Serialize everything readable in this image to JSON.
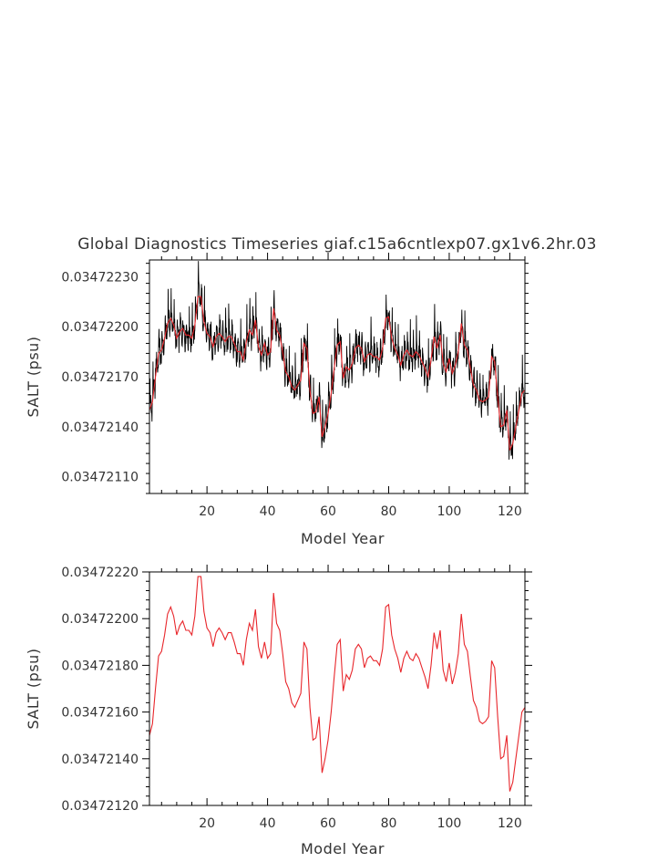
{
  "title": "Global Diagnostics Timeseries giaf.c15a6cntlexp07.gx1v6.2hr.03",
  "colors": {
    "raw": "#000000",
    "smoothed": "#e8262b",
    "axis": "#000000"
  },
  "chart_data": [
    {
      "type": "line",
      "title": "Global Diagnostics Timeseries giaf.c15a6cntlexp07.gx1v6.2hr.03",
      "xlabel": "Model Year",
      "ylabel": "SALT (psu)",
      "xlim": [
        1,
        125
      ],
      "ylim": [
        0.034721,
        0.0347224
      ],
      "xticks": [
        20,
        40,
        60,
        80,
        100,
        120
      ],
      "yticks": [
        0.0347211,
        0.0347214,
        0.0347217,
        0.034722,
        0.0347223
      ],
      "ytick_labels": [
        "0.03472110",
        "0.03472140",
        "0.03472170",
        "0.03472200",
        "0.03472230"
      ],
      "grid": false,
      "series": [
        {
          "role": "raw-monthly",
          "color": "#000000",
          "description": "monthly values oscillating around the annual mean",
          "x": [
            1,
            2,
            3,
            4,
            5,
            6,
            7,
            8,
            9,
            10,
            11,
            12,
            13,
            14,
            15,
            16,
            17,
            18,
            19,
            20,
            21,
            22,
            23,
            24,
            25,
            26,
            27,
            28,
            29,
            30,
            31,
            32,
            33,
            34,
            35,
            36,
            37,
            38,
            39,
            40,
            41,
            42,
            43,
            44,
            45,
            46,
            47,
            48,
            49,
            50,
            51,
            52,
            53,
            54,
            55,
            56,
            57,
            58,
            59,
            60,
            61,
            62,
            63,
            64,
            65,
            66,
            67,
            68,
            69,
            70,
            71,
            72,
            73,
            74,
            75,
            76,
            77,
            78,
            79,
            80,
            81,
            82,
            83,
            84,
            85,
            86,
            87,
            88,
            89,
            90,
            91,
            92,
            93,
            94,
            95,
            96,
            97,
            98,
            99,
            100,
            101,
            102,
            103,
            104,
            105,
            106,
            107,
            108,
            109,
            110,
            111,
            112,
            113,
            114,
            115,
            116,
            117,
            118,
            119,
            120,
            121,
            122,
            123,
            124,
            125
          ],
          "y": [
            0.0347215,
            0.03472155,
            0.0347217,
            0.03472184,
            0.03472186,
            0.03472193,
            0.03472202,
            0.03472205,
            0.03472201,
            0.03472193,
            0.03472197,
            0.03472199,
            0.03472195,
            0.03472195,
            0.03472193,
            0.03472201,
            0.03472218,
            0.03472218,
            0.03472203,
            0.03472196,
            0.03472194,
            0.03472188,
            0.03472194,
            0.03472196,
            0.03472194,
            0.03472191,
            0.03472194,
            0.03472194,
            0.0347219,
            0.03472185,
            0.03472185,
            0.0347218,
            0.03472191,
            0.03472198,
            0.03472195,
            0.03472204,
            0.03472188,
            0.03472183,
            0.0347219,
            0.03472183,
            0.03472185,
            0.03472211,
            0.03472198,
            0.03472195,
            0.03472185,
            0.03472173,
            0.0347217,
            0.03472164,
            0.03472162,
            0.03472165,
            0.03472168,
            0.0347219,
            0.03472187,
            0.03472162,
            0.03472148,
            0.03472149,
            0.03472158,
            0.03472134,
            0.0347214,
            0.03472148,
            0.0347216,
            0.03472175,
            0.03472189,
            0.03472191,
            0.03472169,
            0.03472176,
            0.03472174,
            0.03472178,
            0.03472187,
            0.03472189,
            0.03472187,
            0.03472179,
            0.03472183,
            0.03472184,
            0.03472182,
            0.03472182,
            0.0347218,
            0.03472187,
            0.03472205,
            0.03472206,
            0.03472193,
            0.03472187,
            0.03472183,
            0.03472177,
            0.03472183,
            0.03472186,
            0.03472183,
            0.03472182,
            0.03472185,
            0.03472183,
            0.03472179,
            0.03472175,
            0.0347217,
            0.0347218,
            0.03472194,
            0.03472187,
            0.03472195,
            0.03472178,
            0.03472173,
            0.03472181,
            0.03472172,
            0.03472177,
            0.03472185,
            0.03472202,
            0.03472189,
            0.03472186,
            0.03472175,
            0.03472165,
            0.03472162,
            0.03472156,
            0.03472155,
            0.03472156,
            0.03472158,
            0.03472182,
            0.03472179,
            0.03472158,
            0.0347214,
            0.03472141,
            0.0347215,
            0.03472126,
            0.0347213,
            0.0347214,
            0.0347215,
            0.0347216,
            0.03472162
          ],
          "amplitude": 2.2e-07,
          "samples_per_year": 12
        },
        {
          "role": "annual-mean",
          "color": "#e8262b",
          "x": [
            1,
            2,
            3,
            4,
            5,
            6,
            7,
            8,
            9,
            10,
            11,
            12,
            13,
            14,
            15,
            16,
            17,
            18,
            19,
            20,
            21,
            22,
            23,
            24,
            25,
            26,
            27,
            28,
            29,
            30,
            31,
            32,
            33,
            34,
            35,
            36,
            37,
            38,
            39,
            40,
            41,
            42,
            43,
            44,
            45,
            46,
            47,
            48,
            49,
            50,
            51,
            52,
            53,
            54,
            55,
            56,
            57,
            58,
            59,
            60,
            61,
            62,
            63,
            64,
            65,
            66,
            67,
            68,
            69,
            70,
            71,
            72,
            73,
            74,
            75,
            76,
            77,
            78,
            79,
            80,
            81,
            82,
            83,
            84,
            85,
            86,
            87,
            88,
            89,
            90,
            91,
            92,
            93,
            94,
            95,
            96,
            97,
            98,
            99,
            100,
            101,
            102,
            103,
            104,
            105,
            106,
            107,
            108,
            109,
            110,
            111,
            112,
            113,
            114,
            115,
            116,
            117,
            118,
            119,
            120,
            121,
            122,
            123,
            124,
            125
          ],
          "y": [
            0.0347215,
            0.03472155,
            0.0347217,
            0.03472184,
            0.03472186,
            0.03472193,
            0.03472202,
            0.03472205,
            0.03472201,
            0.03472193,
            0.03472197,
            0.03472199,
            0.03472195,
            0.03472195,
            0.03472193,
            0.03472201,
            0.03472218,
            0.03472218,
            0.03472203,
            0.03472196,
            0.03472194,
            0.03472188,
            0.03472194,
            0.03472196,
            0.03472194,
            0.03472191,
            0.03472194,
            0.03472194,
            0.0347219,
            0.03472185,
            0.03472185,
            0.0347218,
            0.03472191,
            0.03472198,
            0.03472195,
            0.03472204,
            0.03472188,
            0.03472183,
            0.0347219,
            0.03472183,
            0.03472185,
            0.03472211,
            0.03472198,
            0.03472195,
            0.03472185,
            0.03472173,
            0.0347217,
            0.03472164,
            0.03472162,
            0.03472165,
            0.03472168,
            0.0347219,
            0.03472187,
            0.03472162,
            0.03472148,
            0.03472149,
            0.03472158,
            0.03472134,
            0.0347214,
            0.03472148,
            0.0347216,
            0.03472175,
            0.03472189,
            0.03472191,
            0.03472169,
            0.03472176,
            0.03472174,
            0.03472178,
            0.03472187,
            0.03472189,
            0.03472187,
            0.03472179,
            0.03472183,
            0.03472184,
            0.03472182,
            0.03472182,
            0.0347218,
            0.03472187,
            0.03472205,
            0.03472206,
            0.03472193,
            0.03472187,
            0.03472183,
            0.03472177,
            0.03472183,
            0.03472186,
            0.03472183,
            0.03472182,
            0.03472185,
            0.03472183,
            0.03472179,
            0.03472175,
            0.0347217,
            0.0347218,
            0.03472194,
            0.03472187,
            0.03472195,
            0.03472178,
            0.03472173,
            0.03472181,
            0.03472172,
            0.03472177,
            0.03472185,
            0.03472202,
            0.03472189,
            0.03472186,
            0.03472175,
            0.03472165,
            0.03472162,
            0.03472156,
            0.03472155,
            0.03472156,
            0.03472158,
            0.03472182,
            0.03472179,
            0.03472158,
            0.0347214,
            0.03472141,
            0.0347215,
            0.03472126,
            0.0347213,
            0.0347214,
            0.0347215,
            0.0347216,
            0.03472162
          ]
        }
      ]
    },
    {
      "type": "line",
      "title": "",
      "xlabel": "Model Year",
      "ylabel": "SALT (psu)",
      "xlim": [
        1,
        125
      ],
      "ylim": [
        0.0347212,
        0.0347222
      ],
      "xticks": [
        20,
        40,
        60,
        80,
        100,
        120
      ],
      "yticks": [
        0.0347212,
        0.0347214,
        0.0347216,
        0.0347218,
        0.034722,
        0.0347222
      ],
      "ytick_labels": [
        "0.03472120",
        "0.03472140",
        "0.03472160",
        "0.03472180",
        "0.03472200",
        "0.03472220"
      ],
      "grid": false,
      "series": [
        {
          "role": "annual-mean",
          "color": "#e8262b",
          "x": [
            1,
            2,
            3,
            4,
            5,
            6,
            7,
            8,
            9,
            10,
            11,
            12,
            13,
            14,
            15,
            16,
            17,
            18,
            19,
            20,
            21,
            22,
            23,
            24,
            25,
            26,
            27,
            28,
            29,
            30,
            31,
            32,
            33,
            34,
            35,
            36,
            37,
            38,
            39,
            40,
            41,
            42,
            43,
            44,
            45,
            46,
            47,
            48,
            49,
            50,
            51,
            52,
            53,
            54,
            55,
            56,
            57,
            58,
            59,
            60,
            61,
            62,
            63,
            64,
            65,
            66,
            67,
            68,
            69,
            70,
            71,
            72,
            73,
            74,
            75,
            76,
            77,
            78,
            79,
            80,
            81,
            82,
            83,
            84,
            85,
            86,
            87,
            88,
            89,
            90,
            91,
            92,
            93,
            94,
            95,
            96,
            97,
            98,
            99,
            100,
            101,
            102,
            103,
            104,
            105,
            106,
            107,
            108,
            109,
            110,
            111,
            112,
            113,
            114,
            115,
            116,
            117,
            118,
            119,
            120,
            121,
            122,
            123,
            124,
            125
          ],
          "y": [
            0.0347215,
            0.03472155,
            0.0347217,
            0.03472184,
            0.03472186,
            0.03472193,
            0.03472202,
            0.03472205,
            0.03472201,
            0.03472193,
            0.03472197,
            0.03472199,
            0.03472195,
            0.03472195,
            0.03472193,
            0.03472201,
            0.03472218,
            0.03472218,
            0.03472203,
            0.03472196,
            0.03472194,
            0.03472188,
            0.03472194,
            0.03472196,
            0.03472194,
            0.03472191,
            0.03472194,
            0.03472194,
            0.0347219,
            0.03472185,
            0.03472185,
            0.0347218,
            0.03472191,
            0.03472198,
            0.03472195,
            0.03472204,
            0.03472188,
            0.03472183,
            0.0347219,
            0.03472183,
            0.03472185,
            0.03472211,
            0.03472198,
            0.03472195,
            0.03472185,
            0.03472173,
            0.0347217,
            0.03472164,
            0.03472162,
            0.03472165,
            0.03472168,
            0.0347219,
            0.03472187,
            0.03472162,
            0.03472148,
            0.03472149,
            0.03472158,
            0.03472134,
            0.0347214,
            0.03472148,
            0.0347216,
            0.03472175,
            0.03472189,
            0.03472191,
            0.03472169,
            0.03472176,
            0.03472174,
            0.03472178,
            0.03472187,
            0.03472189,
            0.03472187,
            0.03472179,
            0.03472183,
            0.03472184,
            0.03472182,
            0.03472182,
            0.0347218,
            0.03472187,
            0.03472205,
            0.03472206,
            0.03472193,
            0.03472187,
            0.03472183,
            0.03472177,
            0.03472183,
            0.03472186,
            0.03472183,
            0.03472182,
            0.03472185,
            0.03472183,
            0.03472179,
            0.03472175,
            0.0347217,
            0.0347218,
            0.03472194,
            0.03472187,
            0.03472195,
            0.03472178,
            0.03472173,
            0.03472181,
            0.03472172,
            0.03472177,
            0.03472185,
            0.03472202,
            0.03472189,
            0.03472186,
            0.03472175,
            0.03472165,
            0.03472162,
            0.03472156,
            0.03472155,
            0.03472156,
            0.03472158,
            0.03472182,
            0.03472179,
            0.03472158,
            0.0347214,
            0.03472141,
            0.0347215,
            0.03472126,
            0.0347213,
            0.0347214,
            0.0347215,
            0.0347216,
            0.03472162
          ]
        }
      ]
    }
  ]
}
